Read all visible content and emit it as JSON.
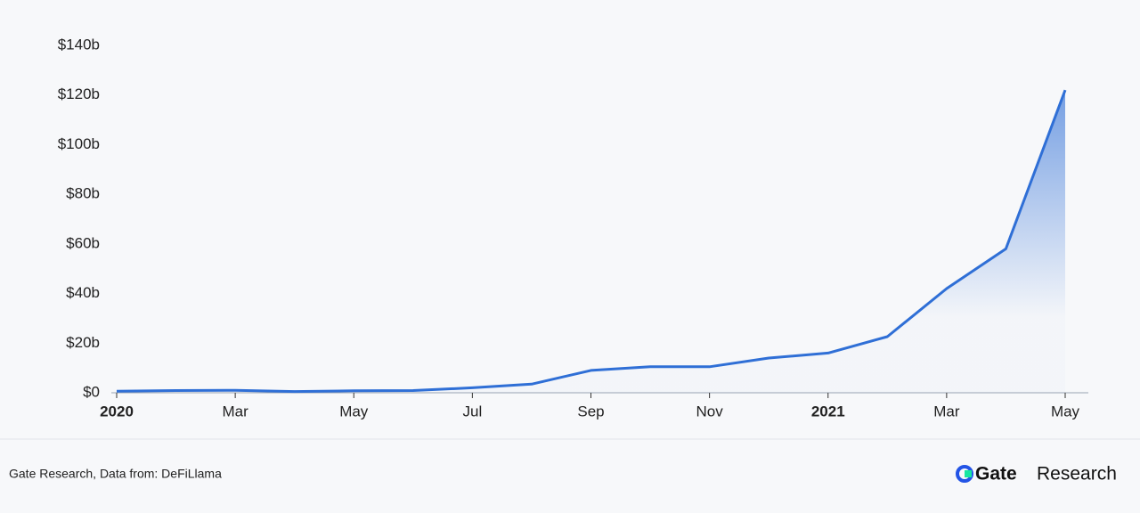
{
  "chart_data": {
    "type": "area",
    "x": [
      "2020-01",
      "2020-02",
      "2020-03",
      "2020-04",
      "2020-05",
      "2020-06",
      "2020-07",
      "2020-08",
      "2020-09",
      "2020-10",
      "2020-11",
      "2020-12",
      "2021-01",
      "2021-02",
      "2021-03",
      "2021-04",
      "2021-05"
    ],
    "series": [
      {
        "color": "#2f6fd6",
        "values": [
          0.6,
          0.9,
          1.0,
          0.5,
          0.8,
          0.9,
          2.0,
          3.5,
          9.0,
          10.5,
          10.5,
          14,
          16,
          22.6,
          42,
          58,
          122
        ]
      }
    ],
    "xlim": [
      "2020-01",
      "2021-05"
    ],
    "xticks": [
      {
        "value": "2020-01",
        "label": "2020"
      },
      {
        "value": "2020-03",
        "label": "Mar"
      },
      {
        "value": "2020-05",
        "label": "May"
      },
      {
        "value": "2020-07",
        "label": "Jul"
      },
      {
        "value": "2020-09",
        "label": "Sep"
      },
      {
        "value": "2020-11",
        "label": "Nov"
      },
      {
        "value": "2021-01",
        "label": "2021"
      },
      {
        "value": "2021-03",
        "label": "Mar"
      },
      {
        "value": "2021-05",
        "label": "May"
      }
    ],
    "ylim": [
      0,
      140
    ],
    "yticks": [
      {
        "value": 0,
        "label": "$0"
      },
      {
        "value": 20,
        "label": "$20b"
      },
      {
        "value": 40,
        "label": "$40b"
      },
      {
        "value": 60,
        "label": "$60b"
      },
      {
        "value": 80,
        "label": "$80b"
      },
      {
        "value": 100,
        "label": "$100b"
      },
      {
        "value": 120,
        "label": "$120b"
      },
      {
        "value": 140,
        "label": "$140b"
      }
    ],
    "grid": false
  },
  "footer": {
    "source": "Gate Research, Data from: DeFiLlama",
    "brand_name": "Gate",
    "brand_suffix": "Research"
  }
}
